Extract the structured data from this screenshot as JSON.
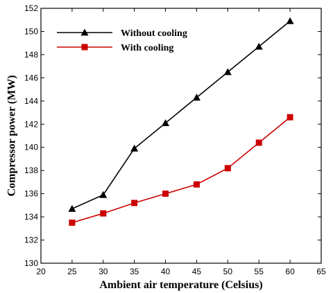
{
  "chart_data": {
    "type": "line",
    "title": "",
    "xlabel": "Ambient air temperature (Celsius)",
    "ylabel": "Compressor power (MW)",
    "xlim": [
      20,
      65
    ],
    "ylim": [
      130,
      152
    ],
    "xticks": [
      20,
      25,
      30,
      35,
      40,
      45,
      50,
      55,
      60,
      65
    ],
    "yticks": [
      130,
      132,
      134,
      136,
      138,
      140,
      142,
      144,
      146,
      148,
      150,
      152
    ],
    "grid": false,
    "legend_position": "top-left",
    "x": [
      25,
      30,
      35,
      40,
      45,
      50,
      55,
      60
    ],
    "series": [
      {
        "name": "Without cooling",
        "color": "#000000",
        "marker": "triangle",
        "values": [
          134.7,
          135.9,
          139.9,
          142.1,
          144.3,
          146.5,
          148.7,
          150.9
        ]
      },
      {
        "name": "With cooling",
        "color": "#cc0000",
        "marker": "square",
        "values": [
          133.5,
          134.3,
          135.2,
          136.0,
          136.8,
          138.2,
          140.4,
          142.6
        ]
      }
    ]
  }
}
